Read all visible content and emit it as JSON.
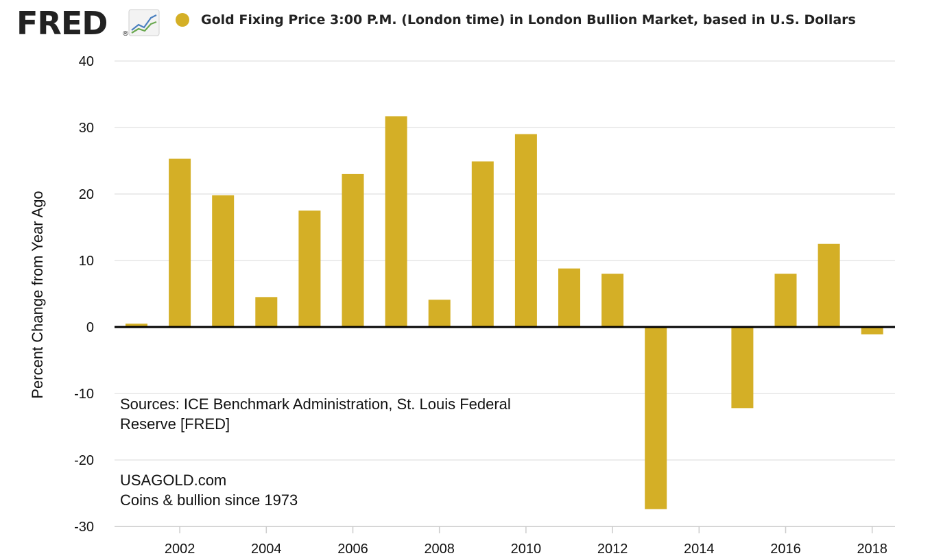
{
  "header": {
    "logo_text": "FRED",
    "registered_mark": "®",
    "legend_label": "Gold Fixing Price 3:00 P.M. (London time) in London Bullion Market, based in U.S. Dollars"
  },
  "colors": {
    "bar": "#D4AF26",
    "zero_line": "#000000",
    "grid": "#E6E6E6",
    "logo": "#222222"
  },
  "annotations": {
    "sources_line1": "Sources:  ICE Benchmark Administration, St. Louis Federal",
    "sources_line2": "Reserve [FRED]",
    "brand_line1": "USAGOLD.com",
    "brand_line2": "Coins & bullion since 1973"
  },
  "chart_data": {
    "type": "bar",
    "title": "",
    "xlabel": "",
    "ylabel": "Percent Change from Year Ago",
    "ylim": [
      -30,
      40
    ],
    "yticks": [
      40,
      30,
      20,
      10,
      0,
      -10,
      -20,
      -30
    ],
    "x_ticks": [
      "2002",
      "2004",
      "2006",
      "2008",
      "2010",
      "2012",
      "2014",
      "2016",
      "2018"
    ],
    "grid": true,
    "legend_position": "top",
    "categories": [
      "2001",
      "2002",
      "2003",
      "2004",
      "2005",
      "2006",
      "2007",
      "2008",
      "2009",
      "2010",
      "2011",
      "2012",
      "2013",
      "2014",
      "2015",
      "2016",
      "2017",
      "2018"
    ],
    "series": [
      {
        "name": "Gold Fixing Price 3:00 P.M. (London time) in London Bullion Market, based in U.S. Dollars",
        "values": [
          0.5,
          25.3,
          19.8,
          4.5,
          17.5,
          23.0,
          31.7,
          4.1,
          24.9,
          29.0,
          8.8,
          8.0,
          -27.4,
          0,
          -12.2,
          8.0,
          12.5,
          -1.1
        ]
      }
    ]
  }
}
